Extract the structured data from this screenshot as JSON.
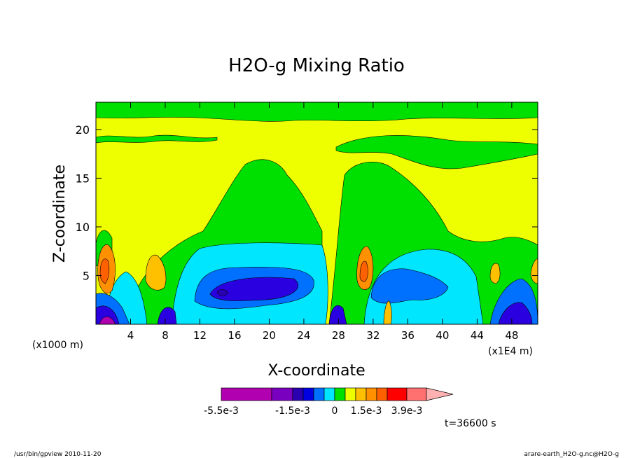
{
  "chart_data": {
    "type": "heatmap",
    "title": "H2O-g Mixing Ratio",
    "xlabel": "X-coordinate",
    "ylabel": "Z-coordinate",
    "x_unit_left": "(x1000 m)",
    "x_unit_right": "(x1E4 m)",
    "xlim": [
      0,
      51
    ],
    "ylim": [
      0,
      22.8
    ],
    "x_ticks": [
      "4",
      "8",
      "12",
      "16",
      "20",
      "24",
      "28",
      "32",
      "36",
      "40",
      "44",
      "48"
    ],
    "y_ticks": [
      "5",
      "10",
      "15",
      "20"
    ],
    "colorbar": {
      "colors": [
        "#b000b0",
        "#7a00c0",
        "#2a00b0",
        "#0000e0",
        "#0070ff",
        "#00e6ff",
        "#00e000",
        "#eeff00",
        "#ffc000",
        "#ff9000",
        "#ff6000",
        "#ff0000",
        "#ff7070",
        "#ffb0b0"
      ],
      "labels": [
        "-5.5e-3",
        "-1.5e-3",
        "0",
        "1.5e-3",
        "3.9e-3"
      ]
    },
    "time_label": "t=36600 s"
  },
  "footer": {
    "left": "/usr/bin/gpview   2010-11-20",
    "right": "arare-earth_H2O-g.nc@H2O-g"
  }
}
